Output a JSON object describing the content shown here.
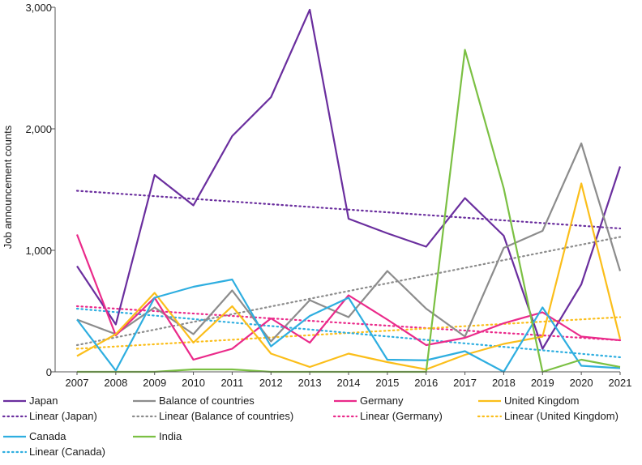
{
  "chart_data": {
    "type": "line",
    "ylabel": "Job announcement counts",
    "xlabel": "",
    "ylim": [
      0,
      3000
    ],
    "grid": false,
    "legend_position": "bottom",
    "categories": [
      "2007",
      "2008",
      "2009",
      "2010",
      "2011",
      "2012",
      "2013",
      "2014",
      "2015",
      "2016",
      "2017",
      "2018",
      "2019",
      "2020",
      "2021"
    ],
    "y_ticks": [
      {
        "value": 0,
        "label": "0"
      },
      {
        "value": 1000,
        "label": "1,000"
      },
      {
        "value": 2000,
        "label": "2,000"
      },
      {
        "value": 3000,
        "label": "3,000"
      }
    ],
    "series": [
      {
        "name": "Japan",
        "color": "#6a2e9e",
        "style": "solid",
        "values": [
          870,
          390,
          1620,
          1370,
          1940,
          2260,
          2980,
          1260,
          1140,
          1030,
          1430,
          1120,
          190,
          720,
          1690
        ]
      },
      {
        "name": "Balance of countries",
        "color": "#8c8c8c",
        "style": "solid",
        "values": [
          430,
          310,
          530,
          310,
          670,
          250,
          590,
          450,
          830,
          520,
          290,
          1020,
          1160,
          1880,
          830
        ]
      },
      {
        "name": "Germany",
        "color": "#ea2a8a",
        "style": "solid",
        "values": [
          1130,
          300,
          610,
          100,
          190,
          440,
          240,
          630,
          430,
          220,
          280,
          400,
          490,
          290,
          260
        ]
      },
      {
        "name": "United Kingdom",
        "color": "#fbbe1a",
        "style": "solid",
        "values": [
          130,
          310,
          650,
          240,
          540,
          150,
          40,
          150,
          80,
          20,
          140,
          230,
          290,
          1550,
          270
        ]
      },
      {
        "name": "Canada",
        "color": "#2eaee0",
        "style": "solid",
        "values": [
          430,
          10,
          610,
          700,
          760,
          210,
          460,
          610,
          100,
          95,
          170,
          0,
          530,
          50,
          30
        ]
      },
      {
        "name": "India",
        "color": "#7bc043",
        "style": "solid",
        "values": [
          0,
          0,
          0,
          20,
          20,
          0,
          0,
          0,
          0,
          0,
          2650,
          1510,
          0,
          100,
          40
        ]
      }
    ],
    "trendlines": [
      {
        "name": "Linear (Japan)",
        "color": "#6a2e9e",
        "style": "dotted",
        "start": 1490,
        "end": 1180
      },
      {
        "name": "Linear (Balance of countries)",
        "color": "#8c8c8c",
        "style": "dotted",
        "start": 220,
        "end": 1110
      },
      {
        "name": "Linear (Germany)",
        "color": "#ea2a8a",
        "style": "dotted",
        "start": 540,
        "end": 260
      },
      {
        "name": "Linear (United Kingdom)",
        "color": "#fbbe1a",
        "style": "dotted",
        "start": 190,
        "end": 450
      },
      {
        "name": "Linear (Canada)",
        "color": "#2eaee0",
        "style": "dotted",
        "start": 520,
        "end": 120
      }
    ]
  }
}
